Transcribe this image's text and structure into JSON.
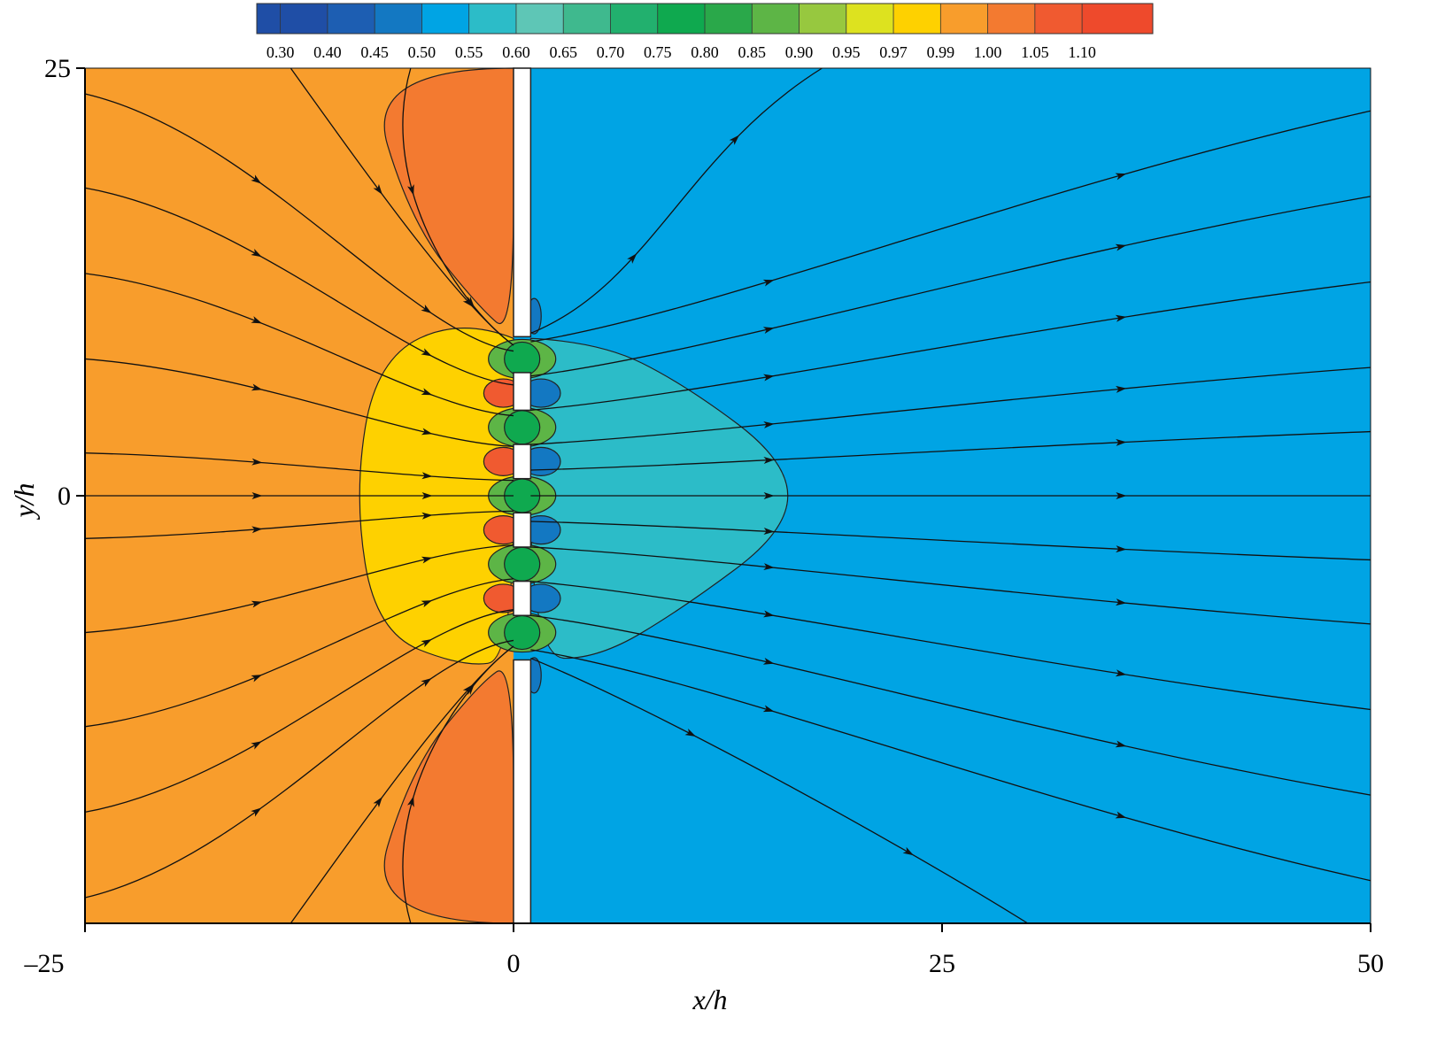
{
  "chart_data": {
    "type": "contour",
    "xlabel": "x/h",
    "ylabel": "y/h",
    "xlim": [
      -25,
      50
    ],
    "ylim": [
      -25,
      25
    ],
    "xticks": [
      {
        "value": -25,
        "label": "–25"
      },
      0,
      25,
      50
    ],
    "yticks": [
      0,
      25
    ],
    "colorbar": {
      "ticks": [
        {
          "value": 0.3,
          "label": "0.30"
        },
        {
          "value": 0.4,
          "label": "0.40"
        },
        0.45,
        {
          "value": 0.5,
          "label": "0.50"
        },
        0.55,
        {
          "value": 0.6,
          "label": "0.60"
        },
        0.65,
        {
          "value": 0.7,
          "label": "0.70"
        },
        0.75,
        {
          "value": 0.8,
          "label": "0.80"
        },
        0.85,
        {
          "value": 0.9,
          "label": "0.90"
        },
        0.95,
        0.97,
        0.99,
        {
          "value": 1,
          "label": "1.00"
        },
        1.05,
        {
          "value": 1.1,
          "label": "1.10"
        }
      ],
      "colors": [
        "#1f4ea6",
        "#1d5eb2",
        "#1378c2",
        "#00a4e4",
        "#2cbcc8",
        "#5ec6b6",
        "#3fb98e",
        "#22b06e",
        "#0fa94f",
        "#2aa84a",
        "#5db546",
        "#97c83f",
        "#dde21f",
        "#fed100",
        "#f89d2c",
        "#f37a30",
        "#f05a30",
        "#ee4a2c"
      ]
    }
  }
}
